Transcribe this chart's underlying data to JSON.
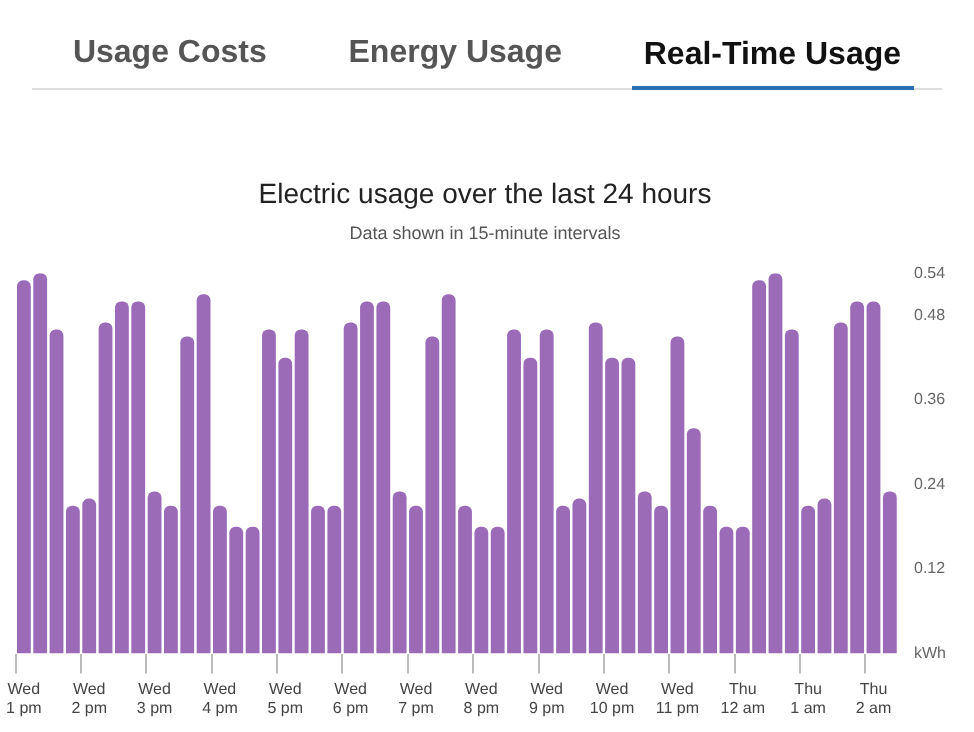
{
  "chart_data": {
    "type": "bar",
    "title": "Electric usage over the last 24 hours",
    "subtitle": "Data shown in 15-minute intervals",
    "annotations": [
      "Usage Costs",
      "Energy Usage",
      "Real-Time Usage"
    ],
    "categories": [
      "Wed 1 pm",
      null,
      null,
      null,
      "Wed 2 pm",
      null,
      null,
      null,
      "Wed 3 pm",
      null,
      null,
      null,
      "Wed 4 pm",
      null,
      null,
      null,
      "Wed 5 pm",
      null,
      null,
      null,
      "Wed 6 pm",
      null,
      null,
      null,
      "Wed 7 pm",
      null,
      null,
      null,
      "Wed 8 pm",
      null,
      null,
      null,
      "Wed 9 pm",
      null,
      null,
      null,
      "Wed 10 pm",
      null,
      null,
      null,
      "Wed 11 pm",
      null,
      null,
      null,
      "Thu 12 am",
      null,
      null,
      null,
      "Thu 1 am",
      null,
      null,
      null,
      "Thu 2 am",
      null
    ],
    "values": [
      0.53,
      0.54,
      0.46,
      0.21,
      0.22,
      0.47,
      0.5,
      0.5,
      0.23,
      0.21,
      0.45,
      0.51,
      0.21,
      0.18,
      0.18,
      0.46,
      0.42,
      0.46,
      0.21,
      0.21,
      0.47,
      0.5,
      0.5,
      0.23,
      0.21,
      0.45,
      0.51,
      0.21,
      0.18,
      0.18,
      0.46,
      0.42,
      0.46,
      0.21,
      0.22,
      0.47,
      0.42,
      0.42,
      0.23,
      0.21,
      0.45,
      0.32,
      0.21,
      0.18,
      0.18,
      0.53,
      0.54,
      0.46,
      0.21,
      0.22,
      0.47,
      0.5,
      0.5,
      0.23
    ],
    "color": "#9b6bb7",
    "ylim": [
      0,
      0.54
    ],
    "yticks": [
      {
        "value": 0,
        "label": "kWh"
      },
      0.12,
      0.24,
      0.36,
      0.48,
      0.54
    ],
    "grid": false,
    "legend": false
  }
}
